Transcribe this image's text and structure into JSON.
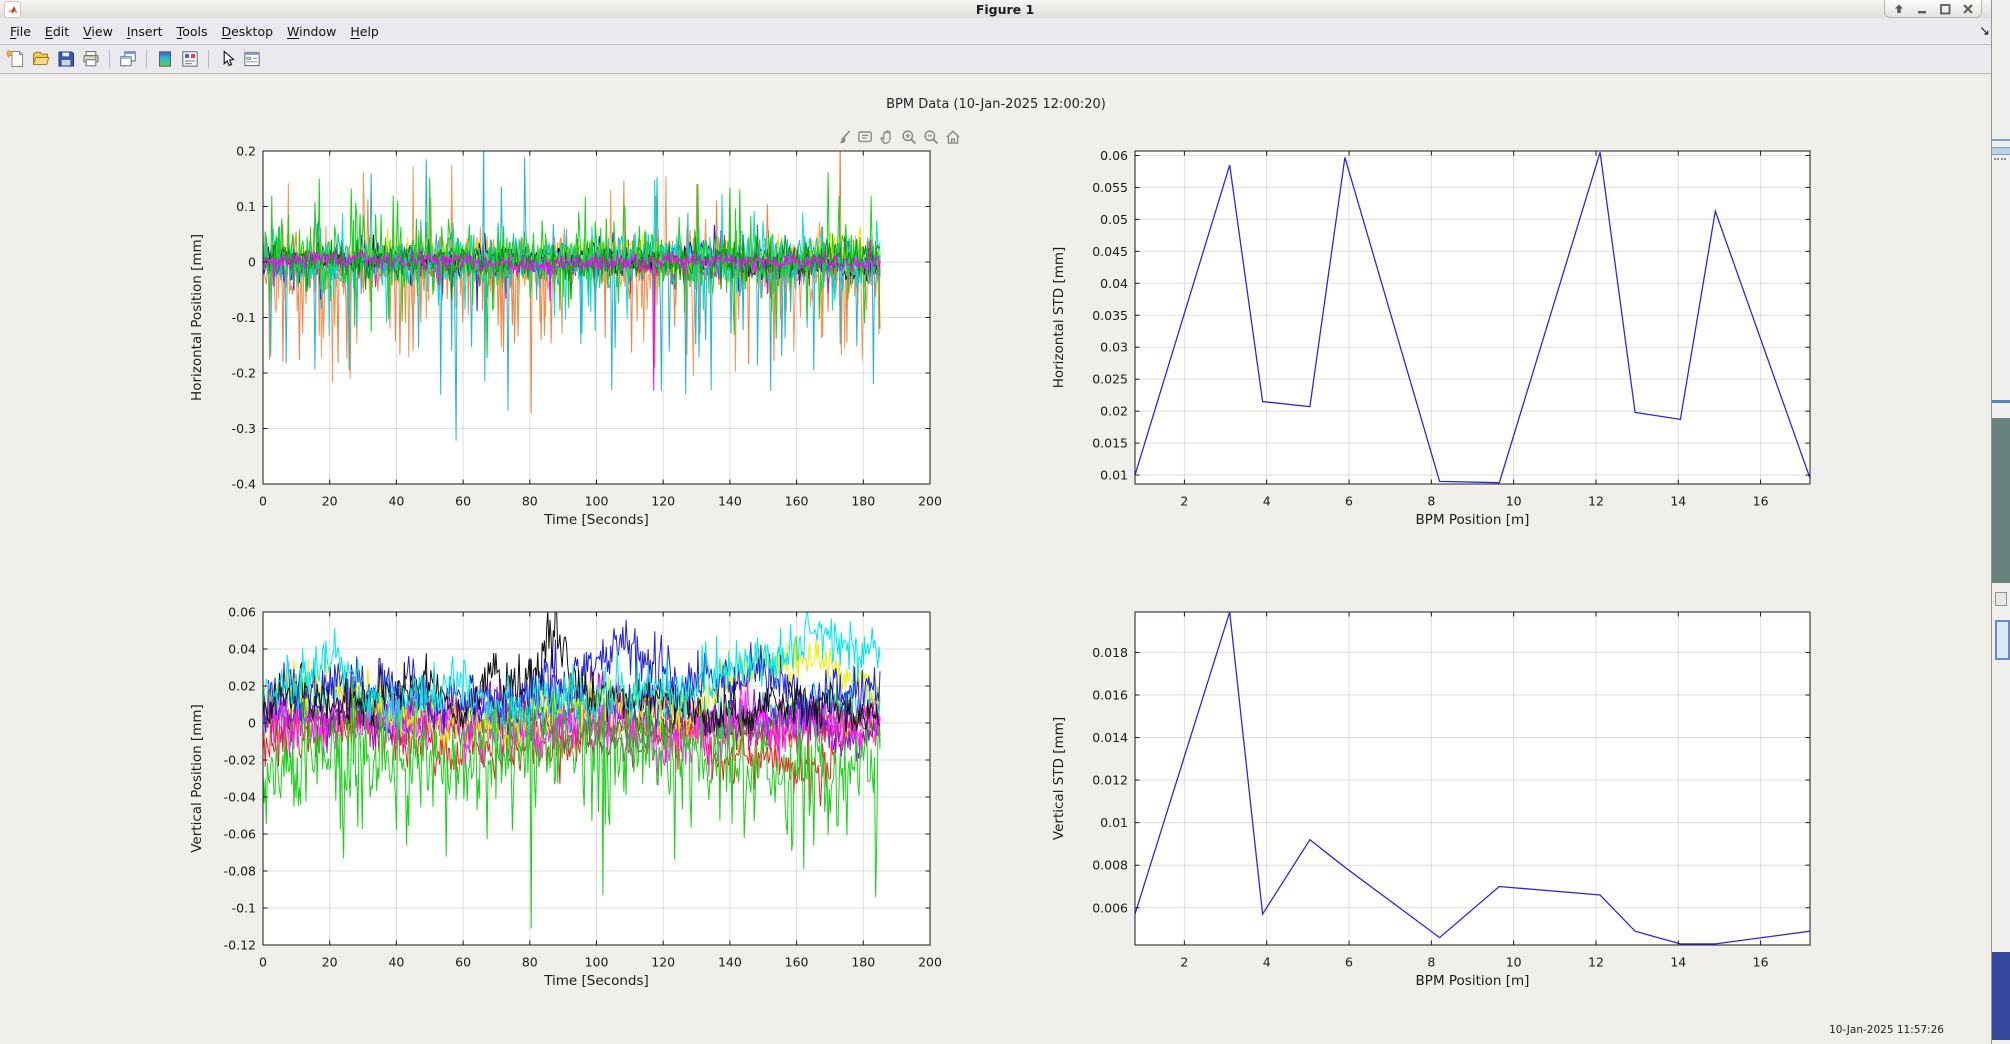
{
  "window": {
    "title": "Figure 1",
    "buttons": [
      {
        "name": "dock-figure",
        "glyph": "up-arrow"
      },
      {
        "name": "minimize",
        "glyph": "minus"
      },
      {
        "name": "maximize",
        "glyph": "square"
      },
      {
        "name": "close",
        "glyph": "x"
      }
    ],
    "dock_corner_arrow": "down-right-arrow"
  },
  "menu": [
    "File",
    "Edit",
    "View",
    "Insert",
    "Tools",
    "Desktop",
    "Window",
    "Help"
  ],
  "toolbar": [
    "new-figure",
    "open-file",
    "save-figure",
    "print-figure",
    "sep",
    "duplicate-figure",
    "sep",
    "colormap-editor",
    "property-editor",
    "sep",
    "edit-plot",
    "plot-browser"
  ],
  "axes_toolbar": [
    "brush",
    "datatip",
    "pan",
    "zoom-in",
    "zoom-out",
    "restore-view"
  ],
  "figure_title": "BPM Data (10-Jan-2025 12:00:20)",
  "status_timestamp": "10-Jan-2025 11:57:26",
  "colors": {
    "chrome_bg": "#eaeaee",
    "canvas_bg": "#f0efec",
    "axes_bg": "#ffffff",
    "grid": "#dcdcdc",
    "std_line_blue": "#2b2bd5",
    "matlab_logo_orange": "#e8703a"
  },
  "chart_data": [
    {
      "id": "horizontal-position",
      "type": "line-noise",
      "position": "top-left",
      "title": "",
      "xlabel": "Time [Seconds]",
      "ylabel": "Horizontal Position [mm]",
      "xlim": [
        0,
        200
      ],
      "ylim": [
        -0.4,
        0.2
      ],
      "grid": true,
      "xtick_values": [
        0,
        20,
        40,
        60,
        80,
        100,
        120,
        140,
        160,
        180,
        200
      ],
      "xtick_labels": [
        "0",
        "20",
        "40",
        "60",
        "80",
        "100",
        "120",
        "140",
        "160",
        "180",
        "200"
      ],
      "ytick_values": [
        -0.4,
        -0.3,
        -0.2,
        -0.1,
        0,
        0.1,
        0.2
      ],
      "ytick_labels": [
        "-0.4",
        "-0.3",
        "-0.2",
        "-0.1",
        "0",
        "0.1",
        "0.2"
      ],
      "x_end": 185,
      "n_points": 560,
      "description": "Overlapping noisy horizontal beam-position traces of many BPMs vs time; band ~±0.05 mm with negative spikes to -0.32 mm",
      "series": [
        {
          "color": "#ef8545",
          "std": 0.025,
          "mean": -0.006,
          "walk": 0.004,
          "spike_prob": 0.09,
          "pos_frac": 0.2,
          "spike_max": 0.2,
          "seed": 101,
          "spikes": [
            {
              "x": 80.5,
              "y": -0.272
            }
          ]
        },
        {
          "color": "#f19a5b",
          "std": 0.028,
          "mean": -0.004,
          "walk": 0.004,
          "spike_prob": 0.1,
          "pos_frac": 0.25,
          "spike_max": 0.16,
          "seed": 102
        },
        {
          "color": "#2323dd",
          "std": 0.013,
          "mean": 0.003,
          "walk": 0.003,
          "spike_prob": 0.03,
          "pos_frac": 0.4,
          "spike_max": 0.07,
          "seed": 103
        },
        {
          "color": "#ee2222",
          "std": 0.012,
          "mean": 0,
          "walk": 0.003,
          "spike_prob": 0.03,
          "pos_frac": 0.4,
          "spike_max": 0.06,
          "seed": 104
        },
        {
          "color": "#b622c8",
          "std": 0.01,
          "mean": -0.002,
          "walk": 0.002,
          "spike_prob": 0.02,
          "pos_frac": 0.4,
          "spike_max": 0.05,
          "seed": 105
        },
        {
          "color": "#eeee00",
          "std": 0.014,
          "mean": 0.012,
          "walk": 0.004,
          "spike_prob": 0.03,
          "pos_frac": 0.5,
          "spike_max": 0.05,
          "seed": 106
        },
        {
          "color": "#111111",
          "std": 0.01,
          "mean": 0.008,
          "walk": 0.005,
          "spike_prob": 0.02,
          "pos_frac": 0.5,
          "spike_max": 0.04,
          "seed": 107
        },
        {
          "color": "#00e0e0",
          "std": 0.02,
          "mean": 0.005,
          "walk": 0.004,
          "spike_prob": 0.05,
          "pos_frac": 0.5,
          "spike_max": 0.12,
          "seed": 108
        },
        {
          "color": "#26b6cc",
          "std": 0.028,
          "mean": 0,
          "walk": 0.003,
          "spike_prob": 0.08,
          "pos_frac": 0.3,
          "spike_max": 0.24,
          "seed": 109,
          "spikes": [
            {
              "x": 58,
              "y": -0.322
            }
          ]
        },
        {
          "color": "#19d219",
          "std": 0.03,
          "mean": 0.005,
          "walk": 0.003,
          "spike_prob": 0.1,
          "pos_frac": 0.55,
          "spike_max": 0.14,
          "seed": 110,
          "spikes": [
            {
              "x": 50,
              "y": 0.152
            }
          ]
        },
        {
          "color": "#0f8f0f",
          "std": 0.014,
          "mean": 0.002,
          "walk": 0.003,
          "spike_prob": 0.03,
          "pos_frac": 0.5,
          "spike_max": 0.05,
          "seed": 111
        },
        {
          "color": "#ff00ff",
          "std": 0.008,
          "mean": 0,
          "walk": 0.002,
          "spike_prob": 0.02,
          "pos_frac": 0.3,
          "spike_max": 0.05,
          "seed": 112,
          "spikes": [
            {
              "x": 117,
              "y": -0.232
            }
          ]
        }
      ]
    },
    {
      "id": "horizontal-std",
      "type": "line",
      "position": "top-right",
      "title": "",
      "xlabel": "BPM Position [m]",
      "ylabel": "Horizontal STD [mm]",
      "xlim": [
        0.8,
        17.2
      ],
      "ylim": [
        0.0086,
        0.0607
      ],
      "grid": true,
      "line_color": "#2b2bd5",
      "xtick_values": [
        2,
        4,
        6,
        8,
        10,
        12,
        14,
        16
      ],
      "xtick_labels": [
        "2",
        "4",
        "6",
        "8",
        "10",
        "12",
        "14",
        "16"
      ],
      "ytick_values": [
        0.01,
        0.015,
        0.02,
        0.025,
        0.03,
        0.035,
        0.04,
        0.045,
        0.05,
        0.055,
        0.06
      ],
      "ytick_labels": [
        "0.01",
        "0.015",
        "0.02",
        "0.025",
        "0.03",
        "0.035",
        "0.04",
        "0.045",
        "0.05",
        "0.055",
        "0.06"
      ],
      "x": [
        0.8,
        3.1,
        3.9,
        5.05,
        5.9,
        8.2,
        9.65,
        12.1,
        12.95,
        14.05,
        14.9,
        17.2
      ],
      "y": [
        0.01,
        0.0585,
        0.0215,
        0.0207,
        0.0597,
        0.009,
        0.0088,
        0.0605,
        0.0198,
        0.0187,
        0.0513,
        0.0095
      ]
    },
    {
      "id": "vertical-position",
      "type": "line-noise",
      "position": "bottom-left",
      "title": "",
      "xlabel": "Time [Seconds]",
      "ylabel": "Vertical Position [mm]",
      "xlim": [
        0,
        200
      ],
      "ylim": [
        -0.12,
        0.06
      ],
      "grid": true,
      "xtick_values": [
        0,
        20,
        40,
        60,
        80,
        100,
        120,
        140,
        160,
        180,
        200
      ],
      "xtick_labels": [
        "0",
        "20",
        "40",
        "60",
        "80",
        "100",
        "120",
        "140",
        "160",
        "180",
        "200"
      ],
      "ytick_values": [
        -0.12,
        -0.1,
        -0.08,
        -0.06,
        -0.04,
        -0.02,
        0,
        0.02,
        0.04,
        0.06
      ],
      "ytick_labels": [
        "-0.12",
        "-0.1",
        "-0.08",
        "-0.06",
        "-0.04",
        "-0.02",
        "0",
        "0.02",
        "0.04",
        "0.06"
      ],
      "x_end": 185,
      "n_points": 560,
      "description": "Overlapping noisy vertical beam-position traces; band ~-0.02..0.03 mm, green trace spikes to -0.111 mm near t=80 s, black bump to ~0.05 mm near t=87 s",
      "series": [
        {
          "color": "#ee2222",
          "std": 0.006,
          "mean": -0.012,
          "walk": 0.005,
          "spike_prob": 0.05,
          "pos_frac": 0.2,
          "spike_max": 0.015,
          "seed": 201
        },
        {
          "color": "#ef8545",
          "std": 0.004,
          "mean": -0.001,
          "walk": 0.002,
          "spike_prob": 0.02,
          "pos_frac": 0.4,
          "spike_max": 0.01,
          "seed": 202
        },
        {
          "color": "#0f8f0f",
          "std": 0.005,
          "mean": 0.001,
          "walk": 0.003,
          "spike_prob": 0.02,
          "pos_frac": 0.5,
          "spike_max": 0.012,
          "seed": 203
        },
        {
          "color": "#26b6cc",
          "std": 0.006,
          "mean": 0.006,
          "walk": 0.004,
          "spike_prob": 0.03,
          "pos_frac": 0.5,
          "spike_max": 0.012,
          "seed": 204
        },
        {
          "color": "#cc2288",
          "std": 0.005,
          "mean": 0.002,
          "walk": 0.003,
          "spike_prob": 0.02,
          "pos_frac": 0.5,
          "spike_max": 0.01,
          "seed": 205
        },
        {
          "color": "#8a12c8",
          "std": 0.006,
          "mean": 0.004,
          "walk": 0.004,
          "spike_prob": 0.02,
          "pos_frac": 0.5,
          "spike_max": 0.01,
          "seed": 206
        },
        {
          "color": "#ff22ff",
          "std": 0.008,
          "mean": 0.008,
          "walk": 0.006,
          "spike_prob": 0.04,
          "pos_frac": 0.5,
          "spike_max": 0.012,
          "seed": 207
        },
        {
          "color": "#eeee00",
          "std": 0.006,
          "mean": 0.013,
          "walk": 0.006,
          "spike_prob": 0.02,
          "pos_frac": 0.6,
          "spike_max": 0.01,
          "seed": 208,
          "bump": {
            "x": 150,
            "h": 0.01,
            "w": 30
          }
        },
        {
          "color": "#2323dd",
          "std": 0.007,
          "mean": 0.01,
          "walk": 0.006,
          "spike_prob": 0.03,
          "pos_frac": 0.6,
          "spike_max": 0.012,
          "seed": 209,
          "bump": {
            "x": 95,
            "h": 0.012,
            "w": 25
          }
        },
        {
          "color": "#111111",
          "std": 0.006,
          "mean": 0.007,
          "walk": 0.006,
          "spike_prob": 0.02,
          "pos_frac": 0.5,
          "spike_max": 0.01,
          "seed": 210,
          "bump": {
            "x": 87,
            "h": 0.038,
            "w": 6
          }
        },
        {
          "color": "#00e8e8",
          "std": 0.007,
          "mean": 0.016,
          "walk": 0.007,
          "spike_prob": 0.04,
          "pos_frac": 0.7,
          "spike_max": 0.014,
          "seed": 211,
          "bump": {
            "x": 172,
            "h": 0.012,
            "w": 35
          }
        },
        {
          "color": "#19d219",
          "std": 0.012,
          "mean": -0.022,
          "walk": 0.004,
          "spike_prob": 0.12,
          "pos_frac": 0.12,
          "spike_max": 0.045,
          "seed": 212,
          "spikes": [
            {
              "x": 80.5,
              "y": -0.111
            },
            {
              "x": 102,
              "y": -0.093
            },
            {
              "x": 24,
              "y": -0.073
            },
            {
              "x": 43,
              "y": -0.066
            },
            {
              "x": 165,
              "y": -0.066
            },
            {
              "x": 184,
              "y": -0.064
            }
          ]
        }
      ]
    },
    {
      "id": "vertical-std",
      "type": "line",
      "position": "bottom-right",
      "title": "",
      "xlabel": "BPM Position [m]",
      "ylabel": "Vertical STD [mm]",
      "xlim": [
        0.8,
        17.2
      ],
      "ylim": [
        0.00425,
        0.0199
      ],
      "grid": true,
      "line_color": "#2b2bd5",
      "xtick_values": [
        2,
        4,
        6,
        8,
        10,
        12,
        14,
        16
      ],
      "xtick_labels": [
        "2",
        "4",
        "6",
        "8",
        "10",
        "12",
        "14",
        "16"
      ],
      "ytick_values": [
        0.006,
        0.008,
        0.01,
        0.012,
        0.014,
        0.016,
        0.018
      ],
      "ytick_labels": [
        "0.006",
        "0.008",
        "0.01",
        "0.012",
        "0.014",
        "0.016",
        "0.018"
      ],
      "x": [
        0.8,
        3.1,
        3.9,
        5.05,
        5.9,
        8.2,
        9.65,
        12.1,
        12.95,
        14.05,
        14.9,
        17.2
      ],
      "y": [
        0.0057,
        0.0199,
        0.0057,
        0.0092,
        0.0079,
        0.0046,
        0.007,
        0.0066,
        0.0049,
        0.0043,
        0.0043,
        0.0049
      ]
    }
  ]
}
